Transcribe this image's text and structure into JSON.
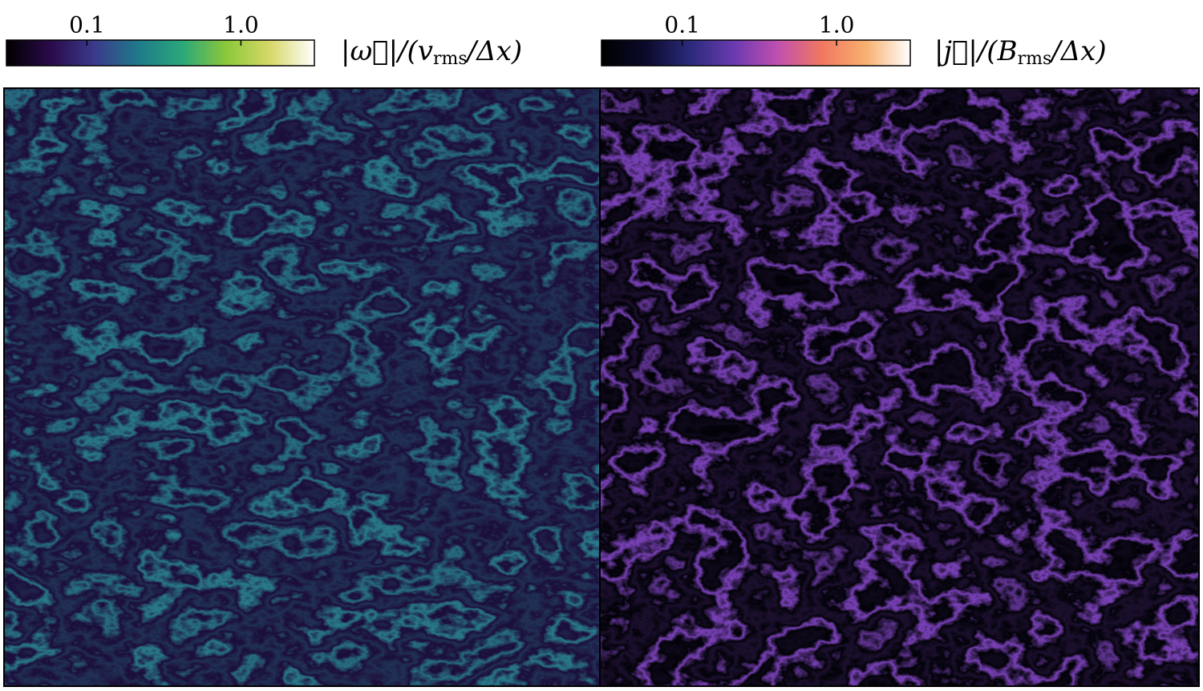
{
  "chart_data": [
    {
      "type": "heatmap",
      "log_scale": true,
      "clim": [
        0.03,
        3
      ],
      "cticks": [
        0.1,
        {
          "value": 1,
          "label": "1.0"
        }
      ],
      "colorbar_label": {
        "main": "|ω⃗|/(v",
        "sub": "rms",
        "tail": "/Δx)"
      },
      "colors": [
        "#000000",
        "#2a0a4a",
        "#3b3a8c",
        "#1f7a8a",
        "#2aa87a",
        "#8cc83a",
        "#d8d86a",
        "#ffffff"
      ]
    },
    {
      "type": "heatmap",
      "log_scale": true,
      "clim": [
        0.03,
        3
      ],
      "cticks": [
        0.1,
        {
          "value": 1,
          "label": "1.0"
        }
      ],
      "colorbar_label": {
        "main": "|j⃗|/(B",
        "sub": "rms",
        "tail": "/Δx)"
      },
      "colors": [
        "#000000",
        "#0a0a2a",
        "#2a2a7a",
        "#6a3ab0",
        "#c050b0",
        "#f07860",
        "#f8b070",
        "#ffffff"
      ]
    }
  ]
}
